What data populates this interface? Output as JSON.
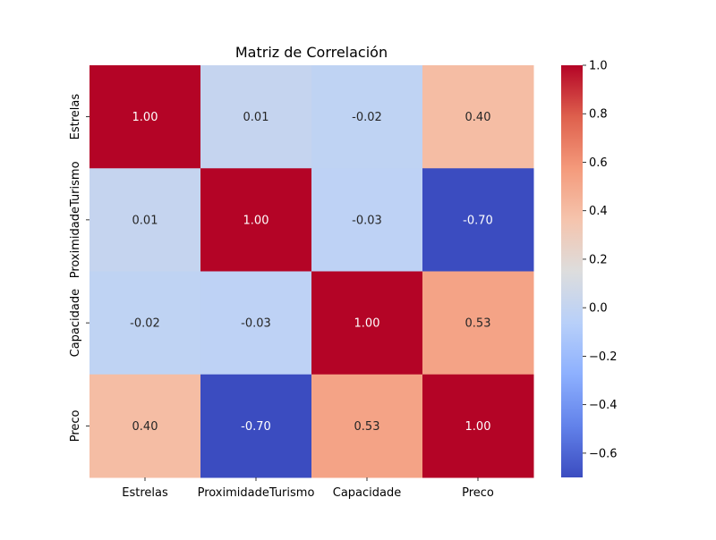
{
  "chart_data": {
    "type": "heatmap",
    "title": "Matriz de Correlación",
    "x_labels": [
      "Estrelas",
      "ProximidadeTurismo",
      "Capacidade",
      "Preco"
    ],
    "y_labels": [
      "Estrelas",
      "ProximidadeTurismo",
      "Capacidade",
      "Preco"
    ],
    "values": [
      [
        1.0,
        0.01,
        -0.02,
        0.4
      ],
      [
        0.01,
        1.0,
        -0.03,
        -0.7
      ],
      [
        -0.02,
        -0.03,
        1.0,
        0.53
      ],
      [
        0.4,
        -0.7,
        0.53,
        1.0
      ]
    ],
    "cell_labels": [
      [
        "1.00",
        "0.01",
        "-0.02",
        "0.40"
      ],
      [
        "0.01",
        "1.00",
        "-0.03",
        "-0.70"
      ],
      [
        "-0.02",
        "-0.03",
        "1.00",
        "0.53"
      ],
      [
        "0.40",
        "-0.70",
        "0.53",
        "1.00"
      ]
    ],
    "colormap": "coolwarm",
    "vmin": -0.7,
    "vmax": 1.0,
    "colorbar_ticks": [
      1.0,
      0.8,
      0.6,
      0.4,
      0.2,
      0.0,
      -0.2,
      -0.4,
      -0.6
    ],
    "colorbar_tick_labels": [
      "1.0",
      "0.8",
      "0.6",
      "0.4",
      "0.2",
      "0.0",
      "−0.2",
      "−0.4",
      "−0.6"
    ],
    "colors": {
      "text_dark": "#262626",
      "text_light": "#ffffff"
    }
  }
}
